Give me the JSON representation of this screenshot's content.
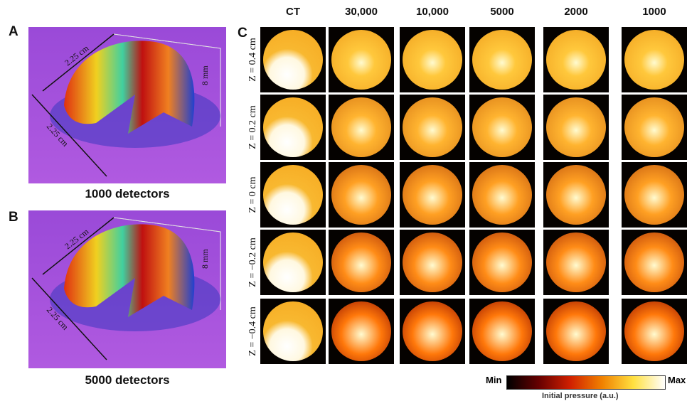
{
  "panel_a": {
    "label": "A",
    "dimensions": [
      "2.25 cm",
      "2.25 cm",
      "8 mm"
    ],
    "caption": "1000 detectors"
  },
  "panel_b": {
    "label": "B",
    "dimensions": [
      "2.25 cm",
      "2.25 cm",
      "8 mm"
    ],
    "caption": "5000 detectors"
  },
  "panel_c": {
    "label": "C",
    "columns": [
      "CT",
      "30,000",
      "10,000",
      "5000",
      "2000",
      "1000"
    ],
    "rows": [
      "Z = 0.4 cm",
      "Z = 0.2 cm",
      "Z = 0 cm",
      "Z = −0.2 cm",
      "Z = −0.4 cm"
    ],
    "colorbar": {
      "min_label": "Min",
      "max_label": "Max",
      "title": "Initial pressure (a.u.)"
    }
  }
}
